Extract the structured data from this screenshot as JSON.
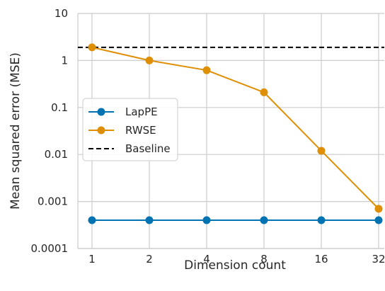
{
  "chart_data": {
    "type": "line",
    "xlabel": "Dimension count",
    "ylabel": "Mean squared error (MSE)",
    "x": [
      1,
      2,
      4,
      8,
      16,
      32
    ],
    "x_tick_labels": [
      "1",
      "2",
      "4",
      "8",
      "16",
      "32"
    ],
    "x_scale": "log2",
    "y_scale": "log",
    "ylim": [
      0.0001,
      10
    ],
    "y_ticks": [
      0.0001,
      0.001,
      0.01,
      0.1,
      1,
      10
    ],
    "y_tick_labels": [
      "0.0001",
      "0.001",
      "0.01",
      "0.1",
      "1",
      "10"
    ],
    "grid": true,
    "legend_position": "center-left",
    "series": [
      {
        "name": "LapPE",
        "color": "#0173b2",
        "style": "solid-marker",
        "values": [
          0.0004,
          0.0004,
          0.0004,
          0.0004,
          0.0004,
          0.0004
        ]
      },
      {
        "name": "RWSE",
        "color": "#de8f05",
        "style": "solid-marker",
        "values": [
          1.9,
          1.0,
          0.62,
          0.21,
          0.012,
          0.0007
        ]
      }
    ],
    "baseline": {
      "name": "Baseline",
      "color": "#000000",
      "style": "dashed",
      "value": 1.9
    }
  }
}
